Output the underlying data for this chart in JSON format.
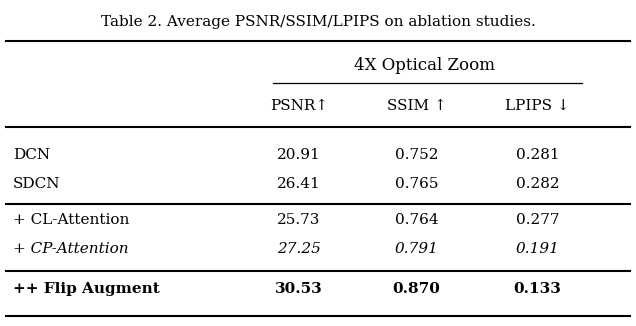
{
  "title": "Table 2. Average PSNR/SSIM/LPIPS on ablation studies.",
  "group_header": "4X Optical Zoom",
  "col_headers": [
    "",
    "PSNR↑",
    "SSIM ↑",
    "LPIPS ↓"
  ],
  "rows": [
    {
      "label": "DCN",
      "values": [
        "20.91",
        "0.752",
        "0.281"
      ],
      "italic": false,
      "bold": false
    },
    {
      "label": "SDCN",
      "values": [
        "26.41",
        "0.765",
        "0.282"
      ],
      "italic": false,
      "bold": false
    },
    {
      "label": "+ CL-Attention",
      "values": [
        "25.73",
        "0.764",
        "0.277"
      ],
      "italic": false,
      "bold": false
    },
    {
      "label": "+ CP-Attention",
      "values": [
        "27.25",
        "0.791",
        "0.191"
      ],
      "italic": true,
      "bold": false
    },
    {
      "label": "++ Flip Augment",
      "values": [
        "30.53",
        "0.870",
        "0.133"
      ],
      "italic": false,
      "bold": true
    }
  ],
  "separators_after": [
    1,
    3
  ],
  "bg_color": "#ffffff",
  "text_color": "#000000",
  "fontsize": 11,
  "title_fontsize": 11
}
